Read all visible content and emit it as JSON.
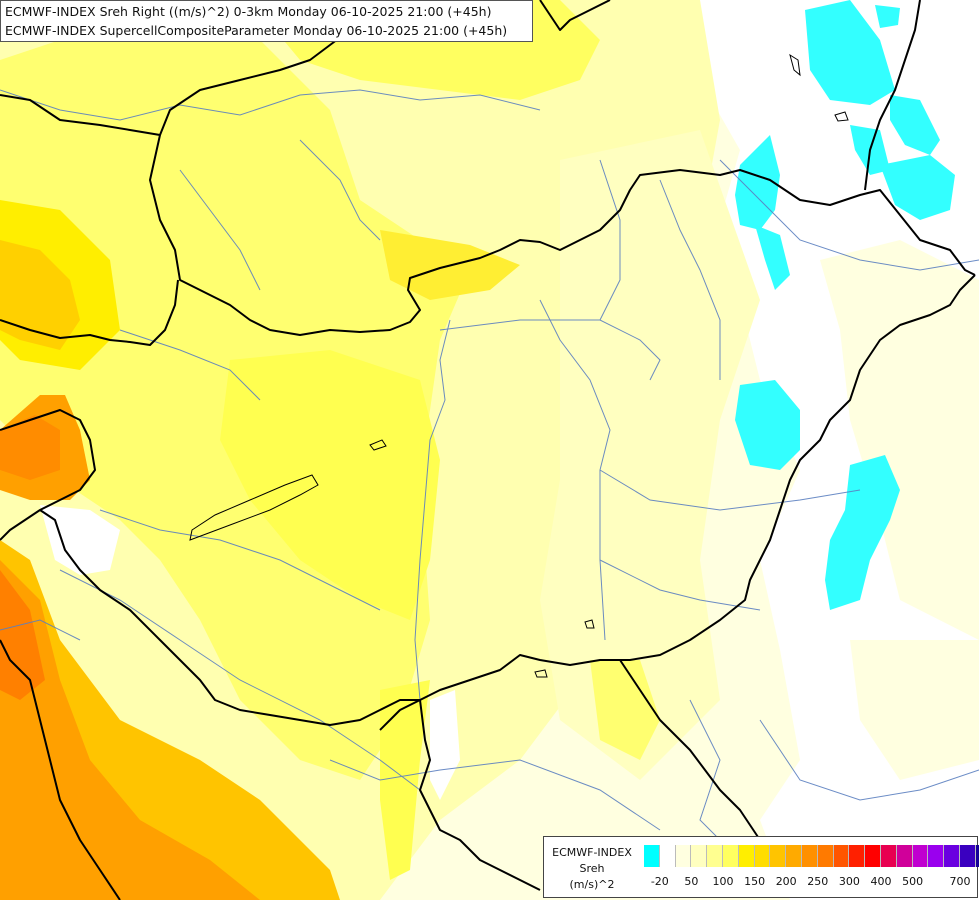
{
  "header": {
    "line1": "ECMWF-INDEX Sreh Right ((m/s)^2) 0-3km Monday 06-10-2025 21:00 (+45h)",
    "line2": "ECMWF-INDEX SupercellCompositeParameter Monday 06-10-2025 21:00 (+45h)"
  },
  "legend": {
    "title": "ECMWF-INDEX",
    "variable": "Sreh",
    "unit": "(m/s)^2",
    "colors": [
      "#00ffff",
      "#ffffff",
      "#ffffe0",
      "#ffffc0",
      "#ffff90",
      "#ffff60",
      "#ffee00",
      "#ffdd00",
      "#ffc400",
      "#ffaa00",
      "#ff9000",
      "#ff7a00",
      "#ff5500",
      "#ff2000",
      "#ff0000",
      "#e80050",
      "#d0009a",
      "#c000d0",
      "#9a00ee",
      "#6a00e0",
      "#3a00c0",
      "#16009a"
    ],
    "ticks": [
      "-20",
      "50",
      "100",
      "150",
      "200",
      "250",
      "300",
      "400",
      "500",
      "700"
    ]
  }
}
